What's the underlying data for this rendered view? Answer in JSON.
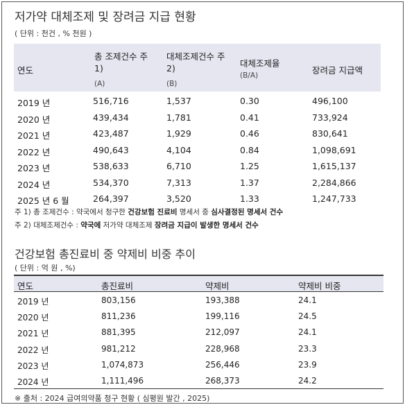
{
  "table1": {
    "title": "저가약 대체조제 및 장려금 지급 현황",
    "unit": "( 단위 : 천건 , % 천원 )",
    "headers": {
      "year": "연도",
      "total_line1": "총 조제건수 주",
      "total_line2": "1)",
      "total_sub": "(A)",
      "subst_line1": "대체조제건수 주",
      "subst_line2": "2)",
      "subst_sub": "(B)",
      "rate": "대체조제율",
      "rate_sub": "(B/A)",
      "incentive": "장려금 지급액"
    },
    "rows": [
      [
        "2019 년",
        "516,716",
        "1,537",
        "0.30",
        "496,100"
      ],
      [
        "2020 년",
        "439,434",
        "1,781",
        "0.41",
        "733,924"
      ],
      [
        "2021 년",
        "423,487",
        "1,929",
        "0.46",
        "830,641"
      ],
      [
        "2022 년",
        "490,643",
        "4,104",
        "0.84",
        "1,098,691"
      ],
      [
        "2023 년",
        "538,633",
        "6,710",
        "1.25",
        "1,615,137"
      ],
      [
        "2024 년",
        "534,370",
        "7,313",
        "1.37",
        "2,284,866"
      ],
      [
        "2025 년 6 월",
        "264,397",
        "3,520",
        "1.33",
        "1,247,733"
      ]
    ],
    "note1": {
      "prefix": "주 1) 총 조제건수 : 약국에서 청구한 ",
      "bold1": "건강보험 진료비",
      "mid": " 명세서 중 ",
      "bold2": "심사결정된 명세서 건수"
    },
    "note2": {
      "prefix": "주 2) 대체조제건수 : ",
      "bold1": "약국에",
      "mid": " 저가약 대체조제 ",
      "bold2": "장려금 지급이 발생한 명세서 건수"
    }
  },
  "table2": {
    "title": "건강보험 총진료비 중 약제비 비중 추이",
    "unit": "( 단위 : 억 원 , %)",
    "headers": [
      "연도",
      "총진료비",
      "약제비",
      "약제비 비중"
    ],
    "rows": [
      [
        "2019 년",
        "803,156",
        "193,388",
        "24.1"
      ],
      [
        "2020 년",
        "811,236",
        "199,116",
        "24.5"
      ],
      [
        "2021 년",
        "881,395",
        "212,097",
        "24.1"
      ],
      [
        "2022 년",
        "981,212",
        "228,968",
        "23.3"
      ],
      [
        "2023 년",
        "1,074,873",
        "256,446",
        "23.9"
      ],
      [
        "2024 년",
        "1,111,496",
        "268,373",
        "24.2"
      ]
    ],
    "source": "※ 출처 : 2024 급여의약품 청구 현황 ( 심평원 발간 , 2025)"
  }
}
